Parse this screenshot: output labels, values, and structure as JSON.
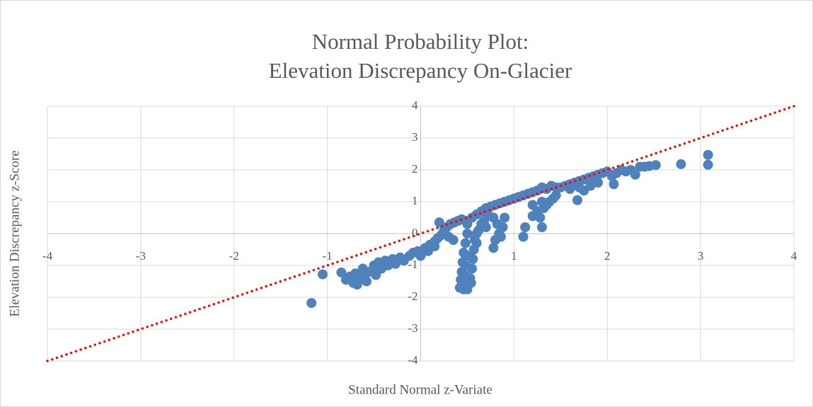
{
  "chart_data": {
    "type": "scatter",
    "title": "Normal Probability Plot:",
    "subtitle": "Elevation Discrepancy On-Glacier",
    "xlabel": "Standard Normal z-Variate",
    "ylabel": "Elevation Discrepancy z-Score",
    "xlim": [
      -4,
      4
    ],
    "xticks": [
      -4,
      -3,
      -2,
      -1,
      0,
      1,
      2,
      3,
      4
    ],
    "ylim": [
      -4,
      4
    ],
    "yticks": [
      -4,
      -3,
      -2,
      -1,
      0,
      1,
      2,
      3,
      4
    ],
    "grid": true,
    "series": [
      {
        "mode": "markers",
        "color": "#4f81bd",
        "x": [
          -1.17,
          -1.05,
          -0.85,
          -0.8,
          -0.76,
          -0.72,
          -0.7,
          -0.68,
          -0.65,
          -0.62,
          -0.6,
          -0.58,
          -0.55,
          -0.5,
          -0.48,
          -0.45,
          -0.42,
          -0.38,
          -0.35,
          -0.3,
          -0.27,
          -0.22,
          -0.18,
          -0.12,
          -0.08,
          -0.03,
          0.0,
          0.05,
          0.1,
          0.15,
          0.18,
          0.22,
          0.25,
          0.28,
          0.32,
          0.36,
          0.4,
          0.44,
          0.48,
          0.5,
          0.2,
          0.3,
          0.35,
          0.15,
          0.08,
          0.5,
          0.48,
          0.46,
          0.45,
          0.44,
          0.43,
          0.42,
          0.46,
          0.5,
          0.53,
          0.55,
          0.56,
          0.57,
          0.58,
          0.6,
          0.52,
          0.48,
          0.47,
          0.5,
          0.54,
          0.6,
          0.62,
          0.55,
          0.6,
          0.65,
          0.7,
          0.75,
          0.8,
          0.85,
          0.9,
          0.95,
          0.72,
          0.68,
          0.78,
          0.82,
          0.84,
          0.8,
          0.78,
          0.86,
          0.88,
          0.9,
          0.7,
          0.65,
          1.0,
          1.05,
          1.1,
          1.15,
          1.2,
          1.25,
          1.3,
          1.35,
          1.4,
          1.45,
          1.1,
          1.12,
          1.2,
          1.25,
          1.28,
          1.3,
          1.32,
          1.35,
          1.38,
          1.42,
          1.45,
          1.3,
          1.2,
          1.5,
          1.55,
          1.6,
          1.65,
          1.7,
          1.75,
          1.8,
          1.85,
          1.9,
          1.95,
          2.0,
          1.6,
          1.7,
          1.75,
          1.82,
          1.9,
          2.05,
          2.1,
          2.15,
          2.2,
          2.25,
          2.3,
          2.35,
          2.4,
          2.45,
          2.52,
          1.68,
          2.07,
          2.79,
          3.08,
          3.08
        ],
        "values": [
          -2.18,
          -1.28,
          -1.22,
          -1.45,
          -1.35,
          -1.55,
          -1.25,
          -1.6,
          -1.4,
          -1.1,
          -1.3,
          -1.5,
          -1.2,
          -1.0,
          -1.3,
          -0.9,
          -1.1,
          -0.85,
          -1.0,
          -0.8,
          -0.95,
          -0.75,
          -0.85,
          -0.7,
          -0.6,
          -0.55,
          -0.7,
          -0.45,
          -0.35,
          -0.25,
          -0.15,
          -0.05,
          0.1,
          0.2,
          0.3,
          0.35,
          0.4,
          0.45,
          0.4,
          0.3,
          0.35,
          -0.1,
          -0.2,
          -0.4,
          -0.55,
          0.0,
          -0.3,
          -0.6,
          -0.9,
          -1.2,
          -1.45,
          -1.7,
          -1.75,
          -1.6,
          -1.4,
          -1.1,
          -0.8,
          -0.5,
          -0.2,
          0.0,
          -0.7,
          -1.0,
          -1.3,
          -1.75,
          -1.55,
          -0.3,
          0.1,
          0.5,
          0.6,
          0.7,
          0.8,
          0.85,
          0.9,
          0.95,
          1.0,
          1.05,
          0.6,
          0.4,
          0.5,
          0.3,
          0.0,
          -0.2,
          -0.45,
          -0.1,
          0.2,
          0.5,
          0.2,
          0.3,
          1.1,
          1.15,
          1.2,
          1.25,
          1.3,
          1.35,
          1.45,
          1.4,
          1.5,
          1.45,
          -0.1,
          0.2,
          0.55,
          0.7,
          0.5,
          0.2,
          0.8,
          0.9,
          1.0,
          1.1,
          1.2,
          1.0,
          0.9,
          1.45,
          1.5,
          1.55,
          1.6,
          1.65,
          1.7,
          1.75,
          1.8,
          1.85,
          1.9,
          1.95,
          1.4,
          1.45,
          1.35,
          1.5,
          1.6,
          1.8,
          1.9,
          2.0,
          1.95,
          2.0,
          1.85,
          2.1,
          2.1,
          2.12,
          2.15,
          1.05,
          1.55,
          2.18,
          2.47,
          2.16
        ]
      },
      {
        "mode": "line",
        "color": "#e01010",
        "style": "dotted",
        "x": [
          -4,
          4
        ],
        "values": [
          -4,
          4
        ]
      }
    ]
  }
}
